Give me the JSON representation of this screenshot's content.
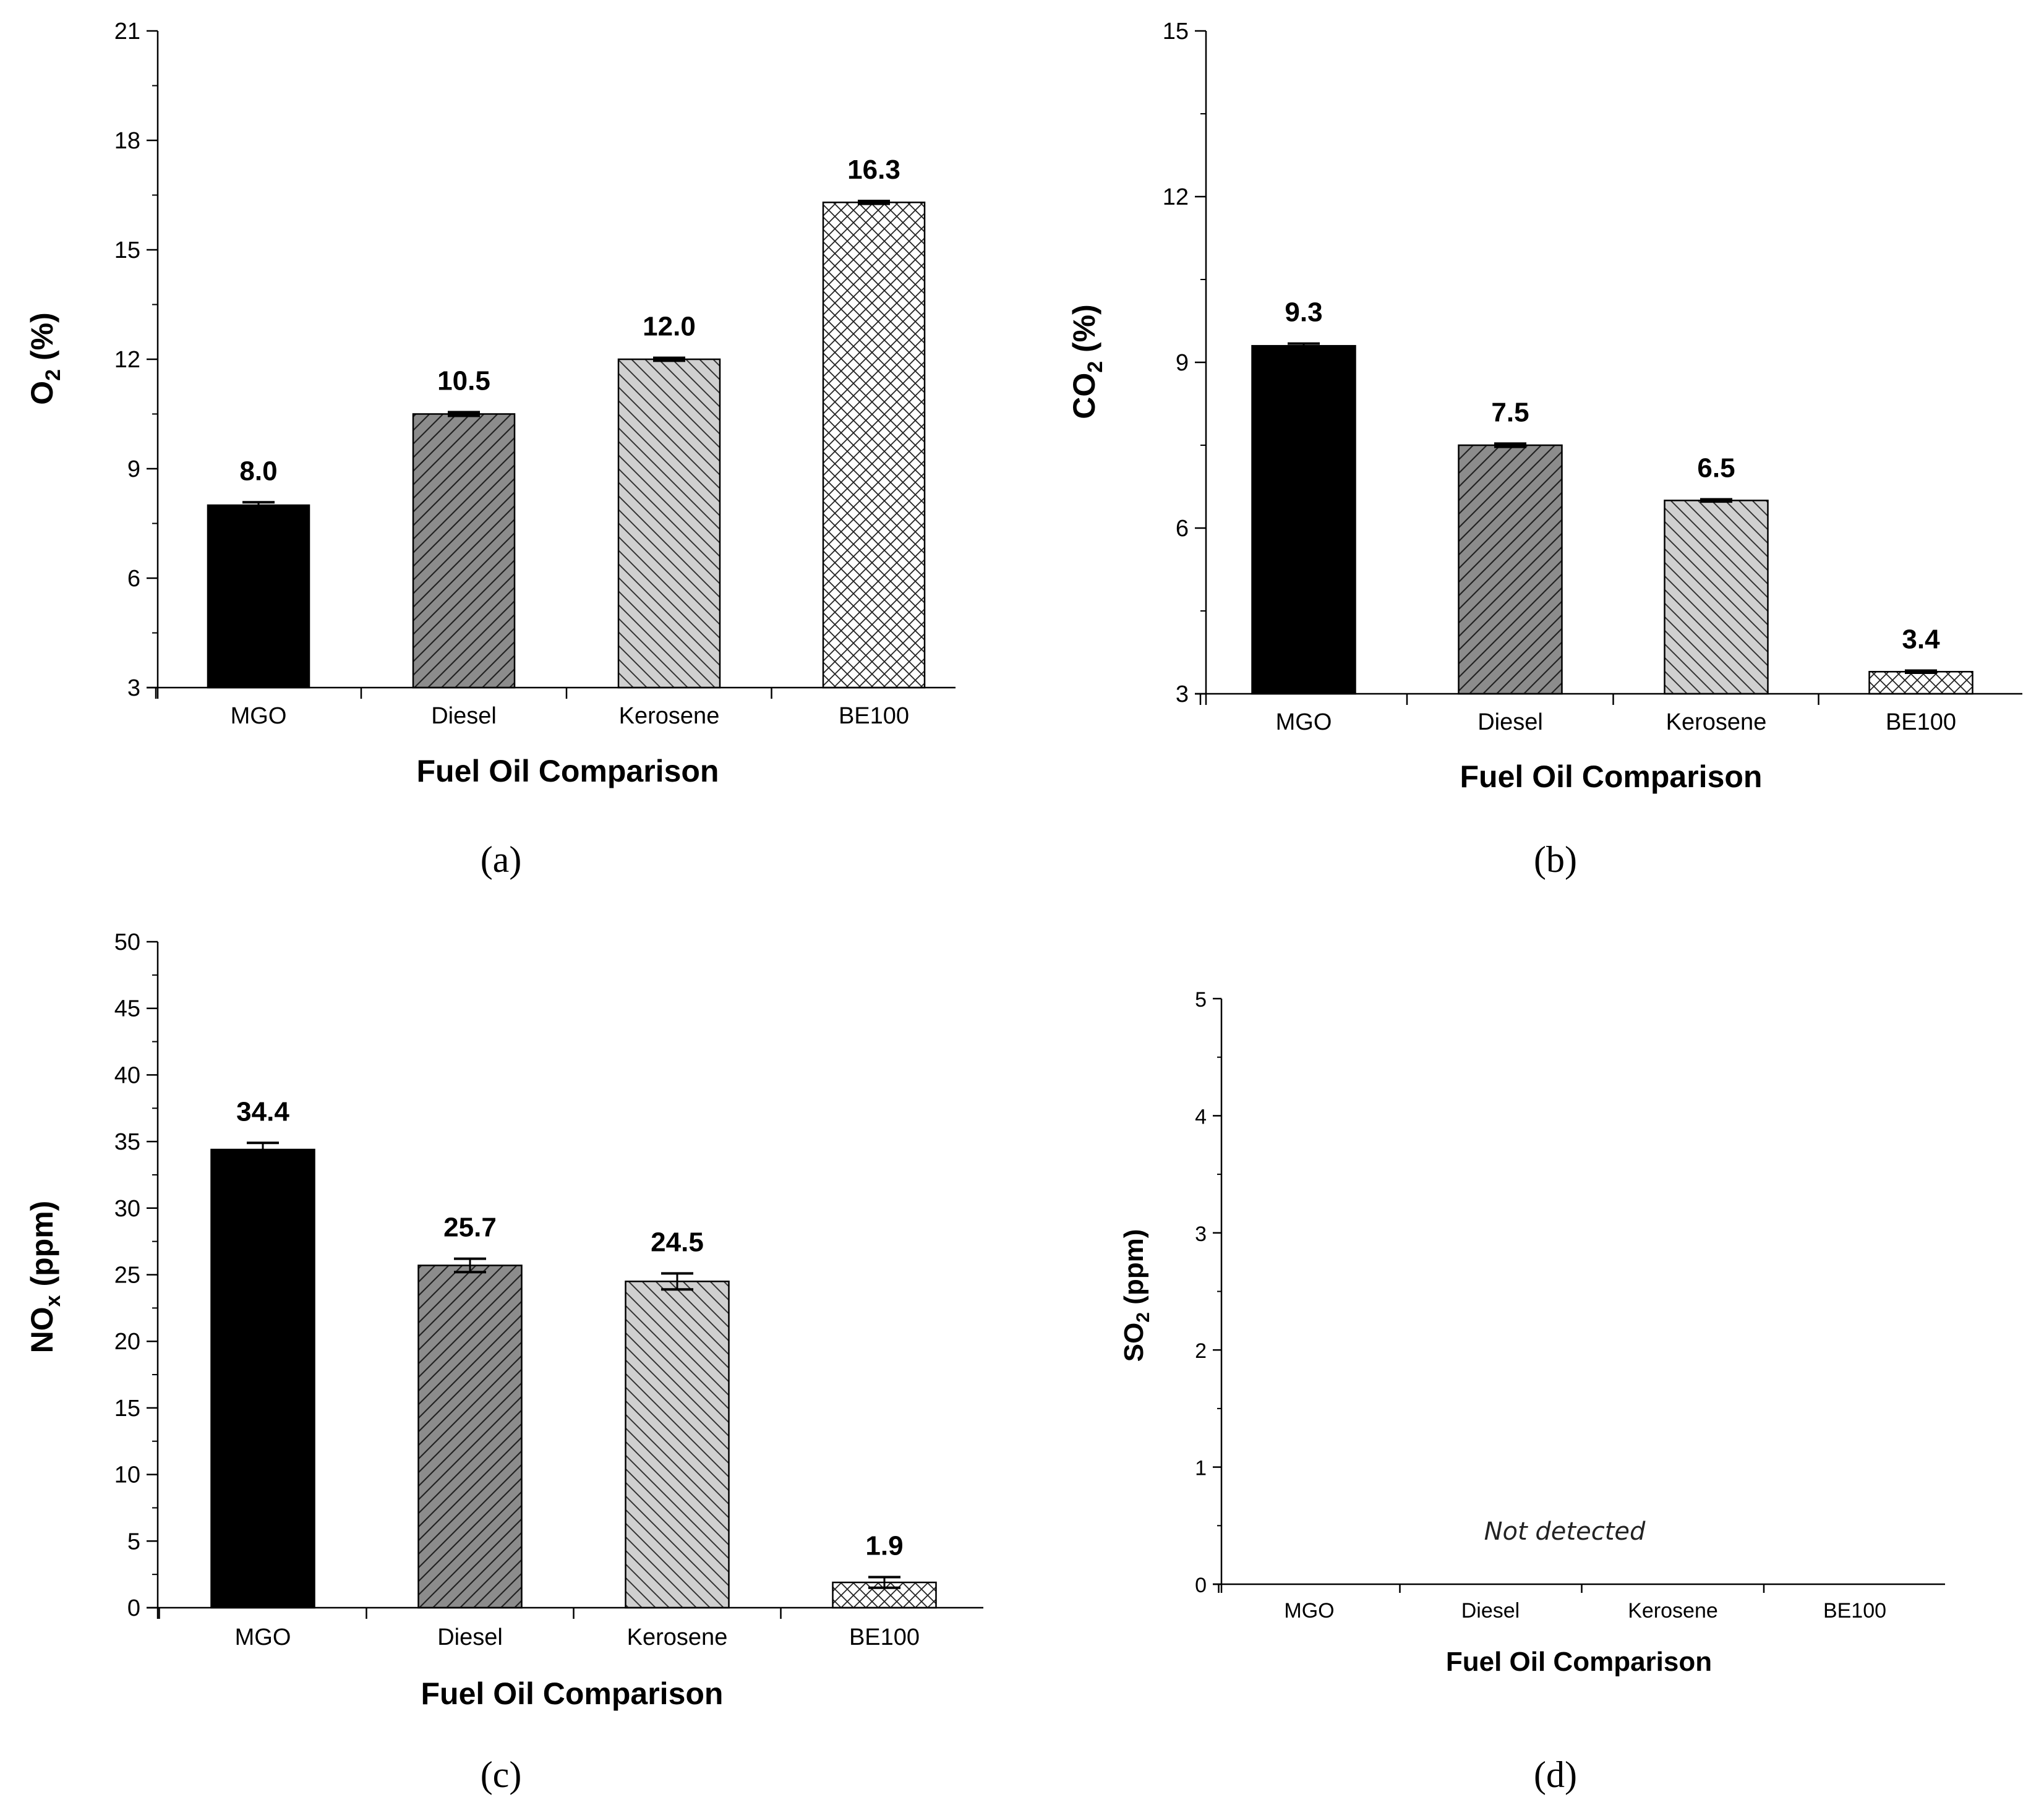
{
  "chart_data": [
    {
      "type": "bar",
      "panel": "(a)",
      "categories": [
        "MGO",
        "Diesel",
        "Kerosene",
        "BE100"
      ],
      "values": [
        8.0,
        10.5,
        12.0,
        16.3
      ],
      "value_labels": [
        "8.0",
        "10.5",
        "12.0",
        "16.3"
      ],
      "errors": [
        0.08,
        0.05,
        0.04,
        0.04
      ],
      "patterns": [
        "solid-black",
        "dark-diagonal",
        "light-diagonal",
        "crosshatch"
      ],
      "xlabel": "Fuel Oil Comparison",
      "ylabel": "O",
      "ylabel_sub": "2",
      "ylabel_suffix": " (%)",
      "ylim": [
        3,
        21
      ],
      "yticks": [
        3,
        6,
        9,
        12,
        15,
        18,
        21
      ],
      "ytick_labels": [
        "3",
        "6",
        "9",
        "12",
        "15",
        "18",
        "21"
      ],
      "caption": "(a)"
    },
    {
      "type": "bar",
      "panel": "(b)",
      "categories": [
        "MGO",
        "Diesel",
        "Kerosene",
        "BE100"
      ],
      "values": [
        9.3,
        7.5,
        6.5,
        3.4
      ],
      "value_labels": [
        "9.3",
        "7.5",
        "6.5",
        "3.4"
      ],
      "errors": [
        0.04,
        0.03,
        0.02,
        0.02
      ],
      "patterns": [
        "solid-black",
        "dark-diagonal",
        "light-diagonal",
        "crosshatch"
      ],
      "xlabel": "Fuel Oil Comparison",
      "ylabel": "CO",
      "ylabel_sub": "2",
      "ylabel_suffix": " (%)",
      "ylim": [
        3,
        15
      ],
      "yticks": [
        3,
        6,
        9,
        12,
        15
      ],
      "ytick_labels": [
        "3",
        "6",
        "9",
        "12",
        "15"
      ],
      "caption": "(b)"
    },
    {
      "type": "bar",
      "panel": "(c)",
      "categories": [
        "MGO",
        "Diesel",
        "Kerosene",
        "BE100"
      ],
      "values": [
        34.4,
        25.7,
        24.5,
        1.9
      ],
      "value_labels": [
        "34.4",
        "25.7",
        "24.5",
        "1.9"
      ],
      "errors": [
        0.5,
        0.5,
        0.6,
        0.4
      ],
      "patterns": [
        "solid-black",
        "dark-diagonal",
        "light-diagonal",
        "crosshatch"
      ],
      "xlabel": "Fuel Oil Comparison",
      "ylabel": "NO",
      "ylabel_sub": "x",
      "ylabel_suffix": " (ppm)",
      "ylim": [
        0,
        50
      ],
      "yticks": [
        0,
        5,
        10,
        15,
        20,
        25,
        30,
        35,
        40,
        45,
        50
      ],
      "ytick_labels": [
        "0",
        "5",
        "10",
        "15",
        "20",
        "25",
        "30",
        "35",
        "40",
        "45",
        "50"
      ],
      "caption": "(c)"
    },
    {
      "type": "bar",
      "panel": "(d)",
      "categories": [
        "MGO",
        "Diesel",
        "Kerosene",
        "BE100"
      ],
      "values": [
        0,
        0,
        0,
        0
      ],
      "annotation": "Not detected",
      "xlabel": "Fuel Oil Comparison",
      "ylabel": "SO",
      "ylabel_sub": "2",
      "ylabel_suffix": " (ppm)",
      "ylim": [
        0,
        5
      ],
      "yticks": [
        0,
        1,
        2,
        3,
        4,
        5
      ],
      "ytick_labels": [
        "0",
        "1",
        "2",
        "3",
        "4",
        "5"
      ],
      "caption": "(d)"
    }
  ]
}
